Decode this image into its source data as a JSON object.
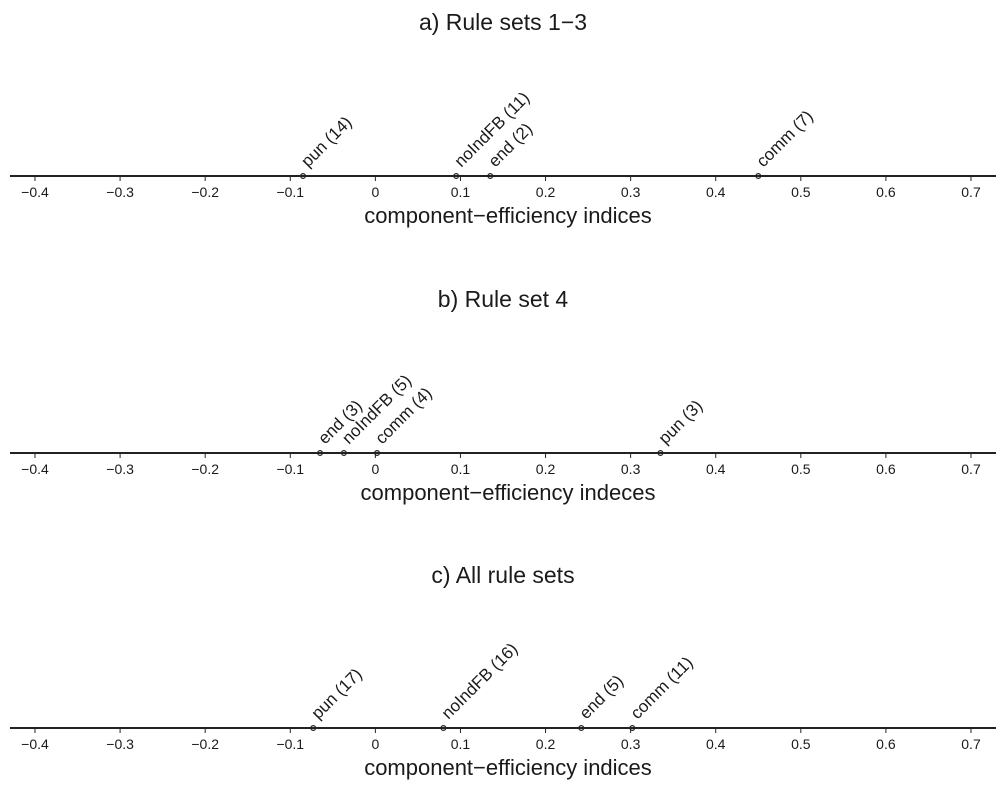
{
  "chart_data": [
    {
      "type": "scatter",
      "title": "a) Rule sets 1−3",
      "xlabel": "component−efficiency indices",
      "xlim": [
        -0.45,
        0.72
      ],
      "xticks": [
        "−0.4",
        "−0.3",
        "−0.2",
        "−0.1",
        "0",
        "0.1",
        "0.2",
        "0.3",
        "0.4",
        "0.5",
        "0.6",
        "0.7"
      ],
      "xtick_values": [
        -0.4,
        -0.3,
        -0.2,
        -0.1,
        0,
        0.1,
        0.2,
        0.3,
        0.4,
        0.5,
        0.6,
        0.7
      ],
      "points": [
        {
          "label": "pun (14)",
          "x": -0.085
        },
        {
          "label": "noIndFB (11)",
          "x": 0.095
        },
        {
          "label": "end (2)",
          "x": 0.135
        },
        {
          "label": "comm (7)",
          "x": 0.45
        }
      ]
    },
    {
      "type": "scatter",
      "title": "b) Rule set 4",
      "xlabel": "component−efficiency indeces",
      "xlim": [
        -0.45,
        0.72
      ],
      "xticks": [
        "−0.4",
        "−0.3",
        "−0.2",
        "−0.1",
        "0",
        "0.1",
        "0.2",
        "0.3",
        "0.4",
        "0.5",
        "0.6",
        "0.7"
      ],
      "xtick_values": [
        -0.4,
        -0.3,
        -0.2,
        -0.1,
        0,
        0.1,
        0.2,
        0.3,
        0.4,
        0.5,
        0.6,
        0.7
      ],
      "points": [
        {
          "label": "end (3)",
          "x": -0.065
        },
        {
          "label": "noIndFB (5)",
          "x": -0.037
        },
        {
          "label": "comm (4)",
          "x": 0.002
        },
        {
          "label": "pun (3)",
          "x": 0.335
        }
      ]
    },
    {
      "type": "scatter",
      "title": "c) All rule sets",
      "xlabel": "component−efficiency indices",
      "xlim": [
        -0.45,
        0.72
      ],
      "xticks": [
        "−0.4",
        "−0.3",
        "−0.2",
        "−0.1",
        "0",
        "0.1",
        "0.2",
        "0.3",
        "0.4",
        "0.5",
        "0.6",
        "0.7"
      ],
      "xtick_values": [
        -0.4,
        -0.3,
        -0.2,
        -0.1,
        0,
        0.1,
        0.2,
        0.3,
        0.4,
        0.5,
        0.6,
        0.7
      ],
      "points": [
        {
          "label": "pun (17)",
          "x": -0.073
        },
        {
          "label": "noIndFB (16)",
          "x": 0.08
        },
        {
          "label": "end (5)",
          "x": 0.242
        },
        {
          "label": "comm (11)",
          "x": 0.302
        }
      ]
    }
  ]
}
